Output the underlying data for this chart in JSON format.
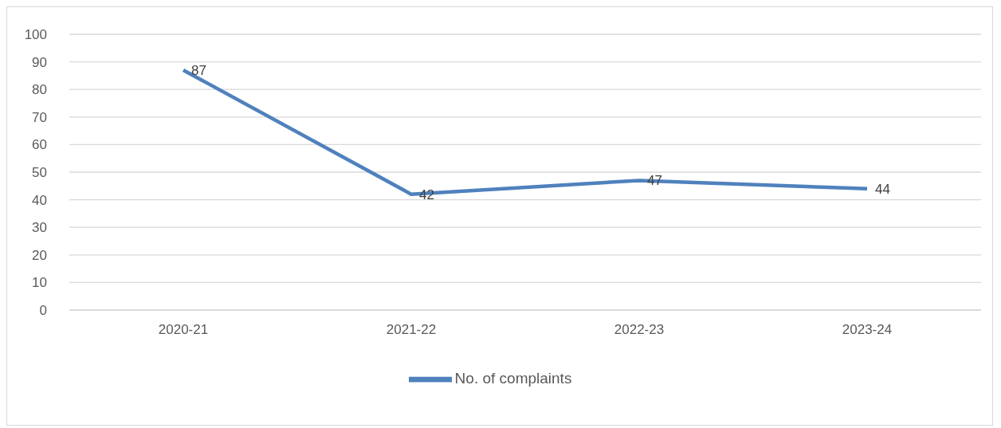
{
  "chart_data": {
    "type": "line",
    "categories": [
      "2020-21",
      "2021-22",
      "2022-23",
      "2023-24"
    ],
    "series": [
      {
        "name": "No. of complaints",
        "color": "#4f81bd",
        "values": [
          87,
          42,
          47,
          44
        ]
      }
    ],
    "ylim": [
      0,
      100
    ],
    "yticks": [
      0,
      10,
      20,
      30,
      40,
      50,
      60,
      70,
      80,
      90,
      100
    ],
    "grid": "y",
    "legend": "bottom",
    "marker": "none",
    "line_style": "solid",
    "data_labels": true
  }
}
